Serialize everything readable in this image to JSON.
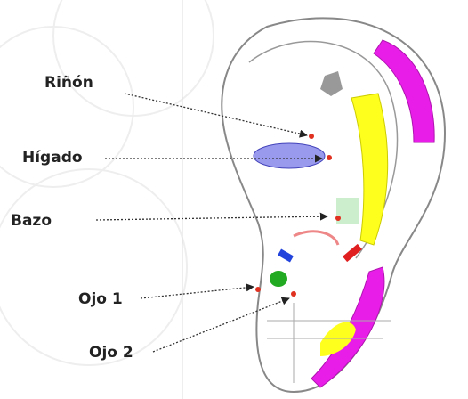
{
  "labels": [
    "Riñón",
    "Hígado",
    "Bazo",
    "Ojo 1",
    "Ojo 2"
  ]
}
